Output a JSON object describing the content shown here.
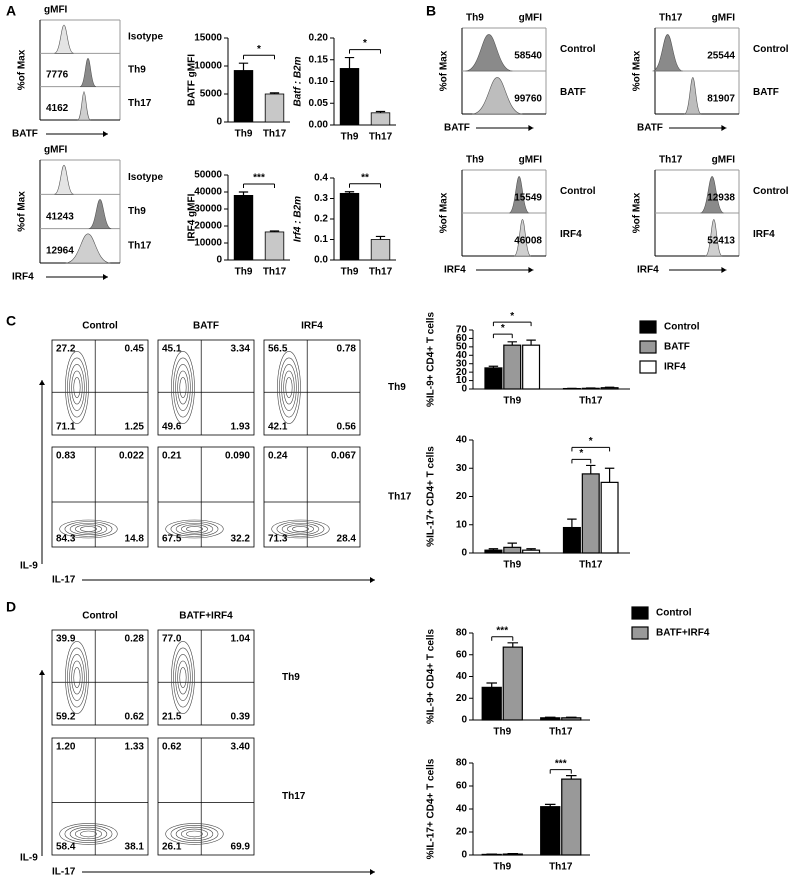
{
  "panel_labels": [
    "A",
    "B",
    "C",
    "D"
  ],
  "hist_A": [
    {
      "header": "gMFI",
      "rows": [
        {
          "label": "Isotype"
        },
        {
          "label": "Th9",
          "gmfi": "7776"
        },
        {
          "label": "Th17",
          "gmfi": "4162"
        }
      ],
      "y_label": "%of Max",
      "x_label": "BATF"
    },
    {
      "header": "gMFI",
      "rows": [
        {
          "label": "Isotype"
        },
        {
          "label": "Th9",
          "gmfi": "41243"
        },
        {
          "label": "Th17",
          "gmfi": "12964"
        }
      ],
      "y_label": "%of Max",
      "x_label": "IRF4"
    }
  ],
  "hist_B": [
    {
      "group": "Th9",
      "header": "gMFI",
      "rows": [
        {
          "label": "Control",
          "gmfi": "58540"
        },
        {
          "label": "BATF",
          "gmfi": "99760"
        }
      ],
      "y_label": "%of Max",
      "x_label": "BATF"
    },
    {
      "group": "Th17",
      "header": "gMFI",
      "rows": [
        {
          "label": "Control",
          "gmfi": "25544"
        },
        {
          "label": "BATF",
          "gmfi": "81907"
        }
      ],
      "y_label": "%of Max",
      "x_label": "BATF"
    },
    {
      "group": "Th9",
      "header": "gMFI",
      "rows": [
        {
          "label": "Control",
          "gmfi": "15549"
        },
        {
          "label": "IRF4",
          "gmfi": "46008"
        }
      ],
      "y_label": "%of Max",
      "x_label": "IRF4"
    },
    {
      "group": "Th17",
      "header": "gMFI",
      "rows": [
        {
          "label": "Control",
          "gmfi": "12938"
        },
        {
          "label": "IRF4",
          "gmfi": "52413"
        }
      ],
      "y_label": "%of Max",
      "x_label": "IRF4"
    }
  ],
  "flow_C": {
    "columns": [
      "Control",
      "BATF",
      "IRF4"
    ],
    "rows": [
      {
        "label": "Th9",
        "quadrants": [
          [
            "27.2",
            "0.45",
            "71.1",
            "1.25"
          ],
          [
            "45.1",
            "3.34",
            "49.6",
            "1.93"
          ],
          [
            "56.5",
            "0.78",
            "42.1",
            "0.56"
          ]
        ]
      },
      {
        "label": "Th17",
        "quadrants": [
          [
            "0.83",
            "0.022",
            "84.3",
            "14.8"
          ],
          [
            "0.21",
            "0.090",
            "67.5",
            "32.2"
          ],
          [
            "0.24",
            "0.067",
            "71.3",
            "28.4"
          ]
        ]
      }
    ],
    "y_label": "IL-9",
    "x_label": "IL-17"
  },
  "flow_D": {
    "columns": [
      "Control",
      "BATF+IRF4"
    ],
    "rows": [
      {
        "label": "Th9",
        "quadrants": [
          [
            "39.9",
            "0.28",
            "59.2",
            "0.62"
          ],
          [
            "77.0",
            "1.04",
            "21.5",
            "0.39"
          ]
        ]
      },
      {
        "label": "Th17",
        "quadrants": [
          [
            "1.20",
            "1.33",
            "58.4",
            "38.1"
          ],
          [
            "0.62",
            "3.40",
            "26.1",
            "69.9"
          ]
        ]
      }
    ],
    "y_label": "IL-9",
    "x_label": "IL-17"
  },
  "chart_data": [
    {
      "type": "bar",
      "y_label": "BATF gMFI",
      "categories": [
        "Th9",
        "Th17"
      ],
      "values": [
        9200,
        5000
      ],
      "errors": [
        1300,
        200
      ],
      "colors": [
        "#000000",
        "#c8c8c8"
      ],
      "ylim": [
        0,
        15000
      ],
      "yticks": [
        0,
        5000,
        10000,
        15000
      ],
      "significance": "*"
    },
    {
      "type": "bar",
      "y_label": "Batf : B2m",
      "ylabel_italic": true,
      "categories": [
        "Th9",
        "Th17"
      ],
      "values": [
        0.13,
        0.028
      ],
      "errors": [
        0.025,
        0.003
      ],
      "colors": [
        "#000000",
        "#c8c8c8"
      ],
      "ylim": [
        0,
        0.2
      ],
      "yticks": [
        {
          "value": 0,
          "label": "0.00"
        },
        {
          "value": 0.05,
          "label": "0.05"
        },
        {
          "value": 0.1,
          "label": "0.10"
        },
        {
          "value": 0.15,
          "label": "0.15"
        },
        {
          "value": 0.2,
          "label": "0.20"
        }
      ],
      "significance": "*"
    },
    {
      "type": "bar",
      "y_label": "IRF4 gMFI",
      "categories": [
        "Th9",
        "Th17"
      ],
      "values": [
        38000,
        16500
      ],
      "errors": [
        2000,
        600
      ],
      "colors": [
        "#000000",
        "#c8c8c8"
      ],
      "ylim": [
        0,
        50000
      ],
      "yticks": [
        0,
        10000,
        20000,
        30000,
        40000,
        50000
      ],
      "significance": "***"
    },
    {
      "type": "bar",
      "y_label": "Irf4 : B2m",
      "ylabel_italic": true,
      "categories": [
        "Th9",
        "Th17"
      ],
      "values": [
        0.325,
        0.1
      ],
      "errors": [
        0.008,
        0.015
      ],
      "colors": [
        "#000000",
        "#c8c8c8"
      ],
      "ylim": [
        0,
        0.4
      ],
      "yticks": [
        {
          "value": 0,
          "label": "0.0"
        },
        0.1,
        0.2,
        0.3,
        0.4
      ],
      "significance": "**"
    },
    {
      "type": "grouped-bar",
      "y_label": "%IL-9+ CD4+ T cells",
      "categories": [
        "Th9",
        "Th17"
      ],
      "legend": true,
      "series": [
        {
          "name": "Control",
          "color": "#000000",
          "values": [
            25,
            0.5
          ],
          "errors": [
            2,
            0.3
          ]
        },
        {
          "name": "BATF",
          "color": "#999999",
          "values": [
            52,
            0.8
          ],
          "errors": [
            4,
            0.4
          ]
        },
        {
          "name": "IRF4",
          "color": "#ffffff",
          "values": [
            52,
            1.5
          ],
          "errors": [
            6,
            0.6
          ]
        }
      ],
      "ylim": [
        0,
        70
      ],
      "yticks": [
        0,
        10,
        20,
        30,
        40,
        50,
        60,
        70
      ],
      "significance": [
        {
          "label": "*",
          "category": "Th9",
          "series": [
            "Control",
            "BATF"
          ]
        },
        {
          "label": "*",
          "category": "Th9",
          "series": [
            "Control",
            "IRF4"
          ]
        }
      ]
    },
    {
      "type": "grouped-bar",
      "y_label": "%IL-17+ CD4+ T cells",
      "categories": [
        "Th9",
        "Th17"
      ],
      "series": [
        {
          "name": "Control",
          "color": "#000000",
          "values": [
            1,
            9
          ],
          "errors": [
            0.5,
            3
          ]
        },
        {
          "name": "BATF",
          "color": "#999999",
          "values": [
            2,
            28
          ],
          "errors": [
            1.5,
            3
          ]
        },
        {
          "name": "IRF4",
          "color": "#ffffff",
          "values": [
            1,
            25
          ],
          "errors": [
            0.5,
            5
          ]
        }
      ],
      "ylim": [
        0,
        40
      ],
      "yticks": [
        0,
        10,
        20,
        30,
        40
      ],
      "significance": [
        {
          "label": "*",
          "category": "Th17",
          "series": [
            "Control",
            "BATF"
          ]
        },
        {
          "label": "*",
          "category": "Th17",
          "series": [
            "Control",
            "IRF4"
          ]
        }
      ]
    },
    {
      "type": "grouped-bar",
      "y_label": "%IL-9+ CD4+ T cells",
      "categories": [
        "Th9",
        "Th17"
      ],
      "legend": true,
      "series": [
        {
          "name": "Control",
          "color": "#000000",
          "values": [
            30,
            2
          ],
          "errors": [
            4,
            0.5
          ]
        },
        {
          "name": "BATF+IRF4",
          "color": "#999999",
          "values": [
            67,
            2
          ],
          "errors": [
            4,
            0.5
          ]
        }
      ],
      "ylim": [
        0,
        80
      ],
      "yticks": [
        0,
        20,
        40,
        60,
        80
      ],
      "significance": [
        {
          "label": "***",
          "category": "Th9",
          "series": [
            "Control",
            "BATF+IRF4"
          ]
        }
      ]
    },
    {
      "type": "grouped-bar",
      "y_label": "%IL-17+ CD4+ T cells",
      "categories": [
        "Th9",
        "Th17"
      ],
      "series": [
        {
          "name": "Control",
          "color": "#000000",
          "values": [
            0.5,
            42
          ],
          "errors": [
            0.3,
            2
          ]
        },
        {
          "name": "BATF+IRF4",
          "color": "#999999",
          "values": [
            0.8,
            66
          ],
          "errors": [
            0.4,
            3
          ]
        }
      ],
      "ylim": [
        0,
        80
      ],
      "yticks": [
        0,
        20,
        40,
        60,
        80
      ],
      "significance": [
        {
          "label": "***",
          "category": "Th17",
          "series": [
            "Control",
            "BATF+IRF4"
          ]
        }
      ]
    }
  ]
}
